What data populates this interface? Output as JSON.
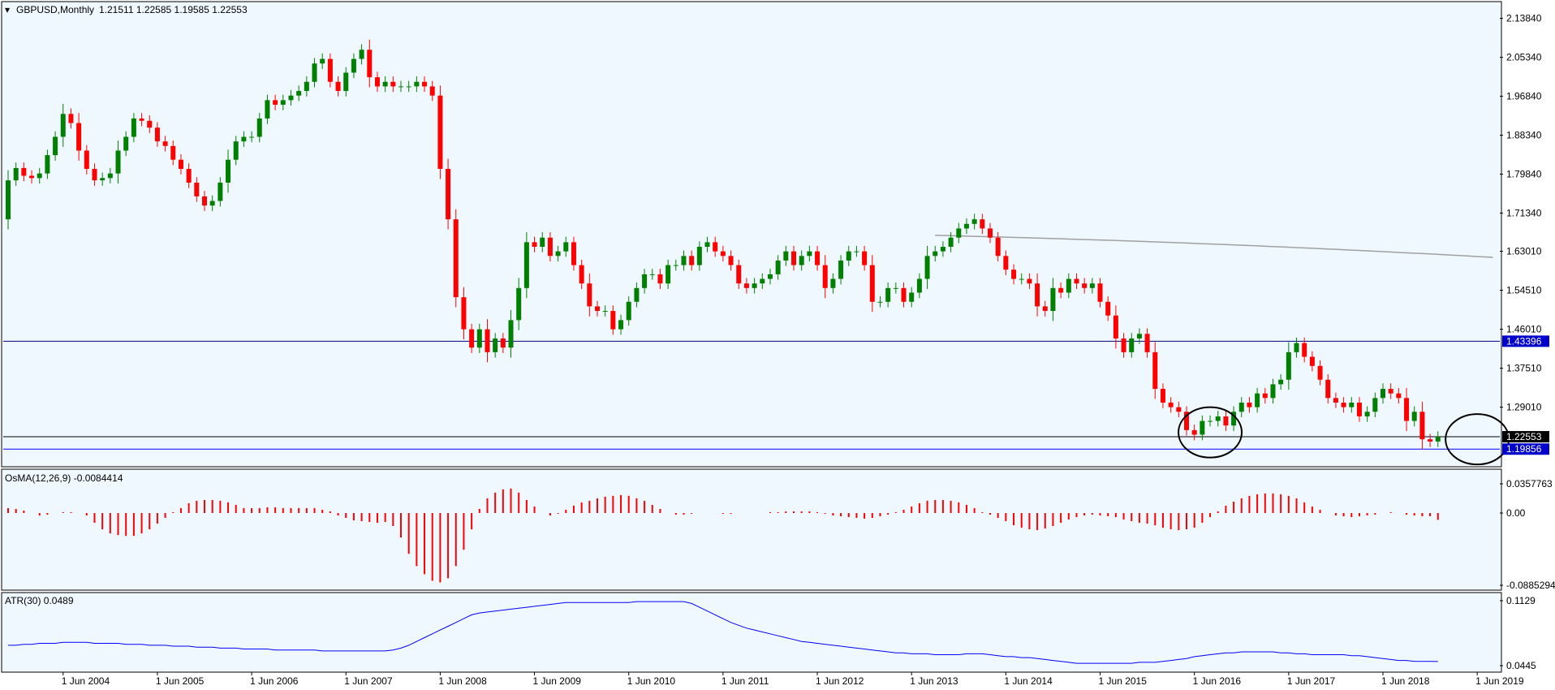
{
  "colors": {
    "background": "#f0f8ff",
    "frame": "#000000",
    "bull": "#008000",
    "bear": "#ff0000",
    "ma": "#a0a0a0",
    "hline_price": "#000080",
    "hline_support": "#0000ff",
    "hline_current": "#000000",
    "osma": "#ff0000",
    "atr": "#0000ff",
    "tag_bg": "#0000cd",
    "tag_current_bg": "#000000"
  },
  "chart_data": [
    {
      "type": "candlestick",
      "title": "GBPUSD,Monthly",
      "ohlc_text": "1.21511 1.22585 1.19585 1.22553",
      "ylim": [
        1.16,
        2.175
      ],
      "y_ticks": [
        "2.13840",
        "2.05340",
        "1.96840",
        "1.88340",
        "1.79840",
        "1.71340",
        "1.63010",
        "1.54510",
        "1.46010",
        "1.37510",
        "1.29010"
      ],
      "horizontal_lines": [
        {
          "value": 1.43396,
          "label": "1.43396",
          "style": "price"
        },
        {
          "value": 1.22553,
          "label": "1.22553",
          "style": "current"
        },
        {
          "value": 1.19856,
          "label": "1.19856",
          "style": "support"
        }
      ],
      "moving_average": {
        "from_date": "2013-09",
        "to_date": "2019-08",
        "start": 1.665,
        "end": 1.617
      },
      "circled_areas": [
        {
          "center_date": "2016-08",
          "center_price": 1.235
        },
        {
          "center_date": "2019-06",
          "center_price": 1.22
        }
      ],
      "x_ticks": [
        "1 Jun 2004",
        "1 Jun 2005",
        "1 Jun 2006",
        "1 Jun 2007",
        "1 Jun 2008",
        "1 Jun 2009",
        "1 Jun 2010",
        "1 Jun 2011",
        "1 Jun 2012",
        "1 Jun 2013",
        "1 Jun 2014",
        "1 Jun 2015",
        "1 Jun 2016",
        "1 Jun 2017",
        "1 Jun 2018",
        "1 Jun 2019"
      ],
      "start_date": "2003-11",
      "closes": [
        1.785,
        1.812,
        1.795,
        1.79,
        1.8,
        1.84,
        1.88,
        1.93,
        1.91,
        1.85,
        1.81,
        1.785,
        1.79,
        1.8,
        1.85,
        1.88,
        1.92,
        1.915,
        1.9,
        1.87,
        1.86,
        1.83,
        1.81,
        1.78,
        1.75,
        1.73,
        1.74,
        1.78,
        1.83,
        1.87,
        1.88,
        1.88,
        1.92,
        1.96,
        1.95,
        1.96,
        1.97,
        1.98,
        2.0,
        2.04,
        2.05,
        2.0,
        1.98,
        2.02,
        2.05,
        2.07,
        2.01,
        1.99,
        2.0,
        1.99,
        1.99,
        1.99,
        2.0,
        1.99,
        1.97,
        1.81,
        1.7,
        1.53,
        1.46,
        1.42,
        1.46,
        1.41,
        1.44,
        1.42,
        1.48,
        1.55,
        1.65,
        1.64,
        1.66,
        1.62,
        1.63,
        1.65,
        1.6,
        1.56,
        1.51,
        1.5,
        1.5,
        1.46,
        1.48,
        1.52,
        1.55,
        1.58,
        1.58,
        1.56,
        1.6,
        1.6,
        1.62,
        1.6,
        1.64,
        1.65,
        1.63,
        1.62,
        1.6,
        1.56,
        1.55,
        1.56,
        1.57,
        1.58,
        1.61,
        1.63,
        1.6,
        1.62,
        1.63,
        1.6,
        1.55,
        1.57,
        1.61,
        1.63,
        1.63,
        1.6,
        1.52,
        1.52,
        1.55,
        1.55,
        1.52,
        1.54,
        1.57,
        1.62,
        1.63,
        1.64,
        1.66,
        1.68,
        1.69,
        1.7,
        1.68,
        1.66,
        1.62,
        1.59,
        1.57,
        1.57,
        1.56,
        1.51,
        1.5,
        1.55,
        1.54,
        1.57,
        1.56,
        1.55,
        1.56,
        1.52,
        1.49,
        1.44,
        1.41,
        1.44,
        1.45,
        1.41,
        1.33,
        1.3,
        1.29,
        1.28,
        1.24,
        1.23,
        1.26,
        1.26,
        1.27,
        1.25,
        1.28,
        1.3,
        1.29,
        1.32,
        1.31,
        1.34,
        1.35,
        1.41,
        1.43,
        1.4,
        1.38,
        1.35,
        1.31,
        1.3,
        1.29,
        1.3,
        1.27,
        1.28,
        1.31,
        1.33,
        1.32,
        1.31,
        1.26,
        1.28,
        1.22,
        1.215,
        1.2255
      ],
      "opens": [
        1.7,
        1.785,
        1.812,
        1.795,
        1.79,
        1.8,
        1.84,
        1.88,
        1.93,
        1.91,
        1.85,
        1.81,
        1.785,
        1.79,
        1.8,
        1.85,
        1.88,
        1.92,
        1.915,
        1.9,
        1.87,
        1.86,
        1.83,
        1.81,
        1.78,
        1.75,
        1.73,
        1.74,
        1.78,
        1.83,
        1.87,
        1.88,
        1.88,
        1.92,
        1.96,
        1.95,
        1.96,
        1.97,
        1.98,
        2.0,
        2.04,
        2.05,
        2.0,
        1.98,
        2.02,
        2.05,
        2.07,
        2.01,
        1.99,
        2.0,
        1.99,
        1.99,
        1.99,
        2.0,
        1.99,
        1.97,
        1.81,
        1.7,
        1.53,
        1.46,
        1.42,
        1.46,
        1.41,
        1.44,
        1.42,
        1.48,
        1.55,
        1.65,
        1.64,
        1.66,
        1.62,
        1.63,
        1.65,
        1.6,
        1.56,
        1.51,
        1.5,
        1.5,
        1.46,
        1.48,
        1.52,
        1.55,
        1.58,
        1.58,
        1.56,
        1.6,
        1.6,
        1.62,
        1.6,
        1.64,
        1.65,
        1.63,
        1.62,
        1.6,
        1.56,
        1.55,
        1.56,
        1.57,
        1.58,
        1.61,
        1.63,
        1.6,
        1.62,
        1.63,
        1.6,
        1.55,
        1.57,
        1.61,
        1.63,
        1.63,
        1.6,
        1.52,
        1.52,
        1.55,
        1.55,
        1.52,
        1.54,
        1.57,
        1.62,
        1.63,
        1.64,
        1.66,
        1.68,
        1.69,
        1.7,
        1.68,
        1.66,
        1.62,
        1.59,
        1.57,
        1.57,
        1.56,
        1.51,
        1.5,
        1.55,
        1.54,
        1.57,
        1.56,
        1.55,
        1.56,
        1.52,
        1.49,
        1.44,
        1.41,
        1.44,
        1.45,
        1.41,
        1.33,
        1.3,
        1.29,
        1.28,
        1.24,
        1.23,
        1.26,
        1.26,
        1.27,
        1.25,
        1.28,
        1.3,
        1.29,
        1.32,
        1.31,
        1.34,
        1.35,
        1.41,
        1.43,
        1.4,
        1.38,
        1.35,
        1.31,
        1.3,
        1.29,
        1.3,
        1.27,
        1.28,
        1.31,
        1.33,
        1.32,
        1.31,
        1.26,
        1.28,
        1.22,
        1.21511
      ]
    },
    {
      "type": "histogram",
      "title": "OsMA(12,26,9) -0.0084414",
      "ylim": [
        -0.0885294,
        0.0357763
      ],
      "y_ticks": [
        "0.0357763",
        "0.00",
        "-0.0885294"
      ],
      "values": [
        0.006,
        0.005,
        0.003,
        0.0,
        -0.003,
        -0.002,
        0.0,
        0.001,
        0.001,
        0.0,
        -0.003,
        -0.012,
        -0.02,
        -0.025,
        -0.027,
        -0.028,
        -0.028,
        -0.025,
        -0.02,
        -0.013,
        -0.006,
        0.001,
        0.006,
        0.012,
        0.015,
        0.016,
        0.016,
        0.015,
        0.013,
        0.01,
        0.006,
        0.006,
        0.006,
        0.007,
        0.007,
        0.006,
        0.006,
        0.006,
        0.006,
        0.006,
        0.004,
        0.002,
        -0.003,
        -0.006,
        -0.009,
        -0.01,
        -0.011,
        -0.012,
        -0.011,
        -0.016,
        -0.03,
        -0.05,
        -0.065,
        -0.075,
        -0.083,
        -0.085,
        -0.08,
        -0.065,
        -0.045,
        -0.02,
        0.005,
        0.018,
        0.025,
        0.029,
        0.03,
        0.025,
        0.016,
        0.008,
        0.0,
        -0.003,
        -0.001,
        0.004,
        0.009,
        0.013,
        0.015,
        0.018,
        0.02,
        0.021,
        0.022,
        0.021,
        0.018,
        0.015,
        0.01,
        0.005,
        0.0,
        -0.002,
        -0.002,
        -0.001,
        0.0,
        0.0,
        0.0,
        -0.001,
        -0.001,
        0.0,
        0.0,
        0.0,
        0.0,
        0.001,
        0.001,
        0.002,
        0.002,
        0.002,
        0.002,
        0.001,
        -0.001,
        -0.003,
        -0.004,
        -0.005,
        -0.006,
        -0.007,
        -0.006,
        -0.004,
        -0.002,
        0.001,
        0.004,
        0.008,
        0.012,
        0.015,
        0.016,
        0.016,
        0.015,
        0.013,
        0.01,
        0.006,
        0.001,
        -0.002,
        -0.006,
        -0.01,
        -0.015,
        -0.018,
        -0.02,
        -0.021,
        -0.019,
        -0.016,
        -0.012,
        -0.008,
        -0.005,
        -0.003,
        -0.002,
        -0.003,
        -0.004,
        -0.005,
        -0.008,
        -0.01,
        -0.012,
        -0.013,
        -0.015,
        -0.018,
        -0.02,
        -0.021,
        -0.02,
        -0.018,
        -0.012,
        -0.005,
        0.002,
        0.009,
        0.014,
        0.018,
        0.021,
        0.023,
        0.024,
        0.024,
        0.023,
        0.021,
        0.018,
        0.013,
        0.008,
        0.004,
        0.0,
        -0.003,
        -0.004,
        -0.005,
        -0.004,
        -0.003,
        -0.002,
        0.0,
        0.001,
        0.0,
        -0.002,
        -0.003,
        -0.004,
        -0.004,
        -0.0084414
      ]
    },
    {
      "type": "line",
      "title": "ATR(30) 0.0489",
      "ylim": [
        0.0445,
        0.1129
      ],
      "y_ticks": [
        "0.1129",
        "0.0445"
      ],
      "values": [
        0.066,
        0.066,
        0.067,
        0.067,
        0.068,
        0.068,
        0.068,
        0.069,
        0.069,
        0.069,
        0.069,
        0.068,
        0.068,
        0.068,
        0.068,
        0.067,
        0.067,
        0.067,
        0.066,
        0.066,
        0.066,
        0.065,
        0.065,
        0.065,
        0.064,
        0.064,
        0.064,
        0.063,
        0.063,
        0.063,
        0.062,
        0.062,
        0.062,
        0.062,
        0.061,
        0.061,
        0.061,
        0.061,
        0.061,
        0.061,
        0.06,
        0.06,
        0.06,
        0.06,
        0.06,
        0.06,
        0.06,
        0.06,
        0.06,
        0.061,
        0.063,
        0.066,
        0.07,
        0.074,
        0.078,
        0.082,
        0.086,
        0.09,
        0.094,
        0.098,
        0.1,
        0.101,
        0.102,
        0.103,
        0.104,
        0.105,
        0.106,
        0.107,
        0.108,
        0.109,
        0.11,
        0.111,
        0.111,
        0.111,
        0.111,
        0.111,
        0.111,
        0.111,
        0.111,
        0.111,
        0.112,
        0.112,
        0.112,
        0.112,
        0.112,
        0.112,
        0.112,
        0.11,
        0.106,
        0.102,
        0.098,
        0.094,
        0.09,
        0.087,
        0.084,
        0.082,
        0.08,
        0.078,
        0.076,
        0.074,
        0.072,
        0.07,
        0.069,
        0.068,
        0.067,
        0.066,
        0.065,
        0.064,
        0.063,
        0.062,
        0.061,
        0.06,
        0.059,
        0.058,
        0.058,
        0.057,
        0.057,
        0.057,
        0.056,
        0.056,
        0.056,
        0.056,
        0.057,
        0.057,
        0.057,
        0.056,
        0.055,
        0.054,
        0.054,
        0.053,
        0.053,
        0.052,
        0.051,
        0.05,
        0.049,
        0.048,
        0.047,
        0.047,
        0.047,
        0.047,
        0.047,
        0.047,
        0.047,
        0.047,
        0.048,
        0.048,
        0.048,
        0.049,
        0.05,
        0.051,
        0.052,
        0.054,
        0.055,
        0.056,
        0.057,
        0.058,
        0.058,
        0.059,
        0.059,
        0.059,
        0.059,
        0.059,
        0.058,
        0.058,
        0.057,
        0.057,
        0.056,
        0.056,
        0.056,
        0.056,
        0.056,
        0.055,
        0.055,
        0.054,
        0.053,
        0.052,
        0.051,
        0.05,
        0.05,
        0.049,
        0.049,
        0.049,
        0.0489
      ]
    }
  ]
}
